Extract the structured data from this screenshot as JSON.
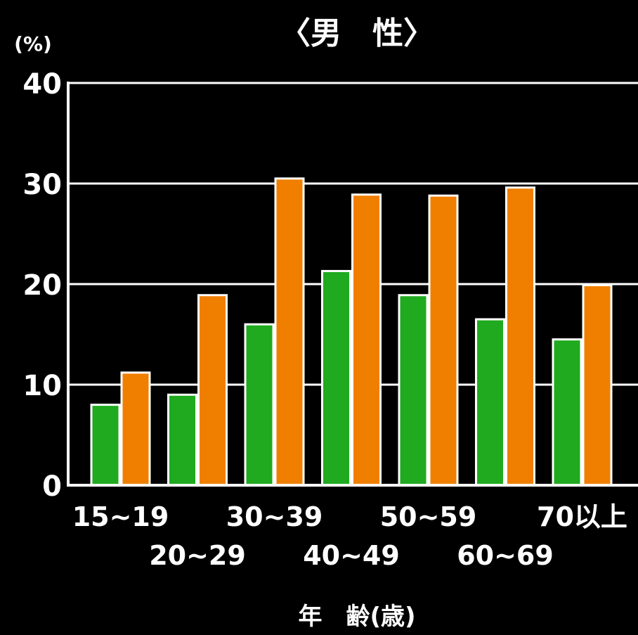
{
  "chart_data": {
    "type": "bar",
    "title": "〈男　性〉",
    "ylabel": "(%)",
    "xlabel": "年　齢(歳)",
    "ylim": [
      0,
      40
    ],
    "yticks": [
      "0",
      "10",
      "20",
      "30",
      "40"
    ],
    "categories": [
      "15~19",
      "20~29",
      "30~39",
      "40~49",
      "50~59",
      "60~69",
      "70以上"
    ],
    "series": [
      {
        "color": "#1faa1f",
        "values": [
          8,
          9,
          16,
          21.3,
          18.9,
          16.5,
          14.5
        ]
      },
      {
        "color": "#f07f00",
        "values": [
          11.2,
          18.9,
          30.5,
          28.9,
          28.8,
          29.6,
          19.9
        ]
      }
    ],
    "grid": true,
    "background": "#000000",
    "foreground": "#ffffff"
  }
}
